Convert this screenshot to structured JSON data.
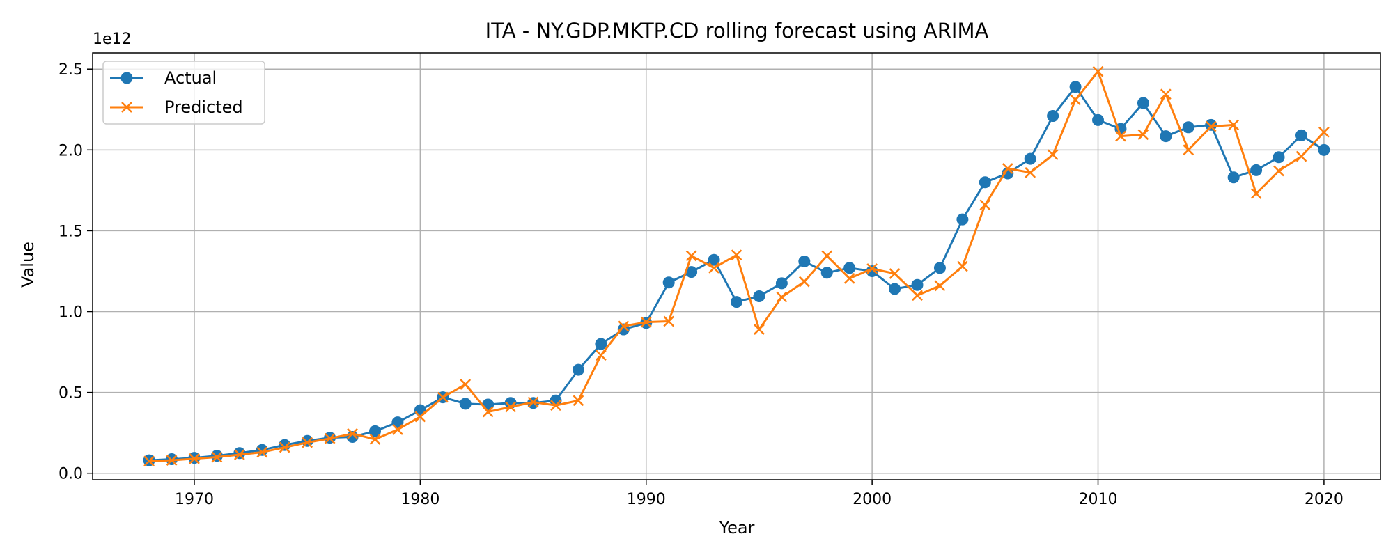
{
  "chart_data": {
    "type": "line",
    "title": "ITA - NY.GDP.MKTP.CD rolling forecast using ARIMA",
    "xlabel": "Year",
    "ylabel": "Value",
    "y_offset_label": "1e12",
    "y_scale_note": "values in units of 1e12",
    "xlim": [
      1965.5,
      2022.5
    ],
    "ylim": [
      -0.04,
      2.6
    ],
    "x_ticks": [
      1970,
      1980,
      1990,
      2000,
      2010,
      2020
    ],
    "x_tick_labels": [
      "1970",
      "1980",
      "1990",
      "2000",
      "2010",
      "2020"
    ],
    "y_ticks": [
      0.0,
      0.5,
      1.0,
      1.5,
      2.0,
      2.5
    ],
    "y_tick_labels": [
      "0.0",
      "0.5",
      "1.0",
      "1.5",
      "2.0",
      "2.5"
    ],
    "grid": true,
    "legend_position": "top-left",
    "x": [
      1968,
      1969,
      1970,
      1971,
      1972,
      1973,
      1974,
      1975,
      1976,
      1977,
      1978,
      1979,
      1980,
      1981,
      1982,
      1983,
      1984,
      1985,
      1986,
      1987,
      1988,
      1989,
      1990,
      1991,
      1992,
      1993,
      1994,
      1995,
      1996,
      1997,
      1998,
      1999,
      2000,
      2001,
      2002,
      2003,
      2004,
      2005,
      2006,
      2007,
      2008,
      2009,
      2010,
      2011,
      2012,
      2013,
      2014,
      2015,
      2016,
      2017,
      2018,
      2019,
      2020
    ],
    "series": [
      {
        "name": "Actual",
        "color": "#1f77b4",
        "marker": "circle",
        "values": [
          0.08,
          0.087,
          0.095,
          0.108,
          0.125,
          0.144,
          0.175,
          0.2,
          0.22,
          0.225,
          0.26,
          0.315,
          0.39,
          0.47,
          0.43,
          0.425,
          0.435,
          0.435,
          0.45,
          0.64,
          0.8,
          0.89,
          0.93,
          1.18,
          1.245,
          1.32,
          1.06,
          1.095,
          1.175,
          1.31,
          1.24,
          1.27,
          1.25,
          1.14,
          1.165,
          1.27,
          1.57,
          1.8,
          1.855,
          1.945,
          2.21,
          2.39,
          2.185,
          2.13,
          2.29,
          2.085,
          2.14,
          2.155,
          1.83,
          1.875,
          1.955,
          2.09,
          2.0
        ]
      },
      {
        "name": "Predicted",
        "color": "#ff7f0e",
        "marker": "x",
        "values": [
          0.075,
          0.08,
          0.09,
          0.1,
          0.115,
          0.13,
          0.16,
          0.19,
          0.215,
          0.245,
          0.21,
          0.27,
          0.35,
          0.47,
          0.55,
          0.38,
          0.41,
          0.44,
          0.42,
          0.45,
          0.73,
          0.91,
          0.935,
          0.94,
          1.345,
          1.27,
          1.35,
          0.89,
          1.09,
          1.185,
          1.345,
          1.205,
          1.265,
          1.235,
          1.1,
          1.16,
          1.28,
          1.66,
          1.885,
          1.86,
          1.97,
          2.31,
          2.485,
          2.085,
          2.095,
          2.345,
          2.0,
          2.145,
          2.155,
          1.73,
          1.87,
          1.96,
          2.11
        ]
      }
    ]
  }
}
